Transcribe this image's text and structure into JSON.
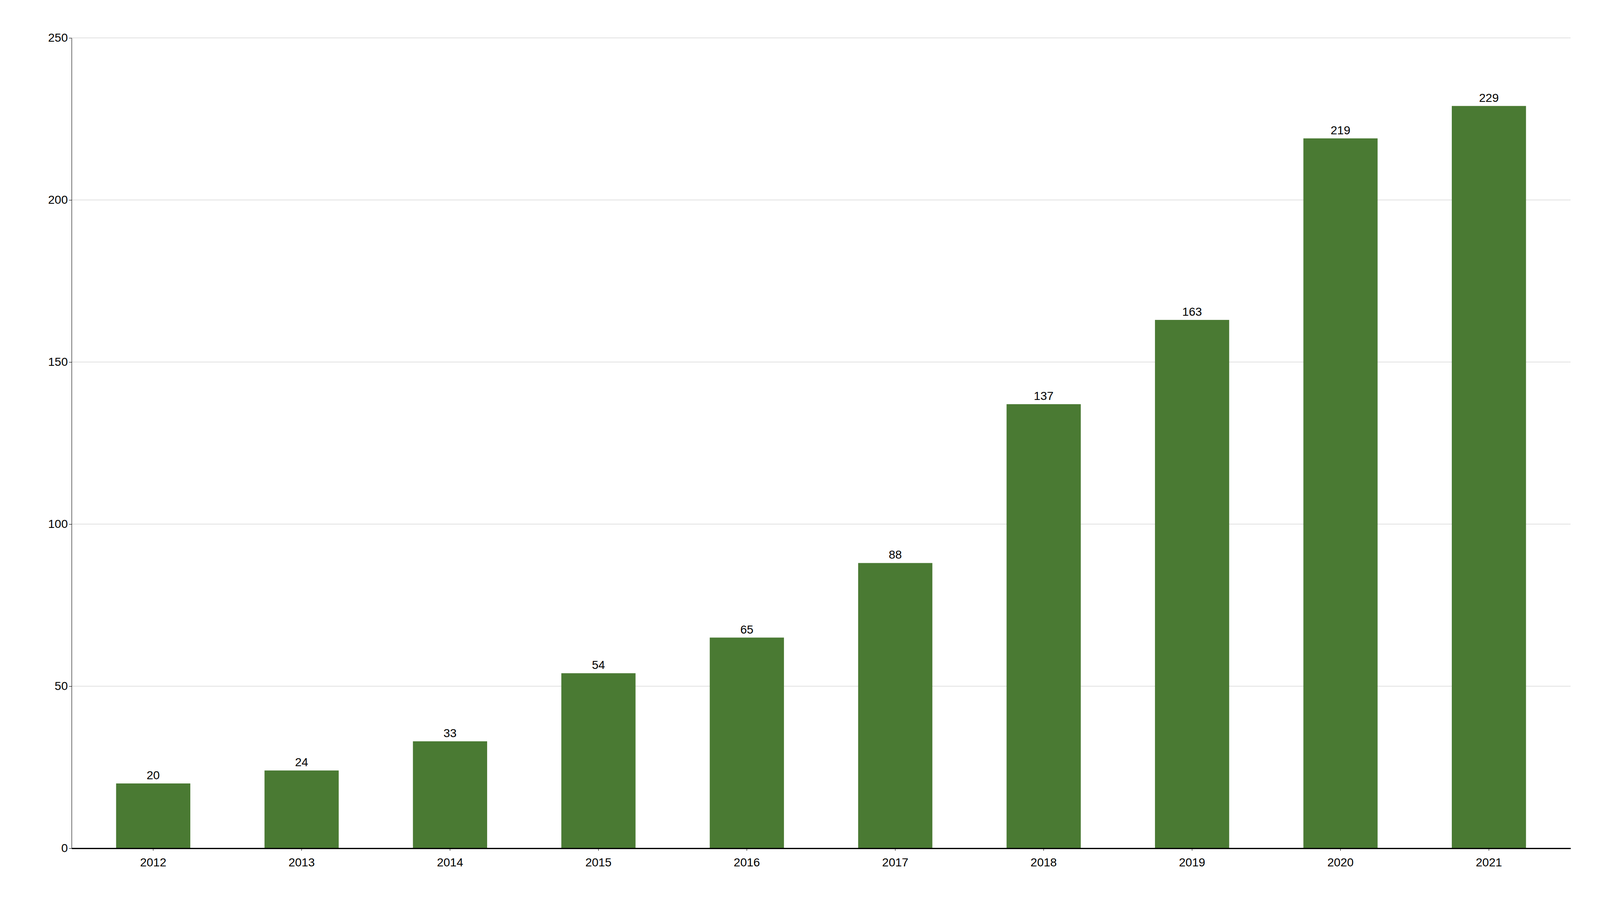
{
  "chart_data": {
    "type": "bar",
    "categories": [
      "2012",
      "2013",
      "2014",
      "2015",
      "2016",
      "2017",
      "2018",
      "2019",
      "2020",
      "2021"
    ],
    "values": [
      20,
      24,
      33,
      54,
      65,
      88,
      137,
      163,
      219,
      229
    ],
    "color": "#4a7a33",
    "ylim": [
      0,
      250
    ],
    "yticks": [
      0,
      50,
      100,
      150,
      200,
      250
    ],
    "grid": true,
    "data_labels": true
  }
}
